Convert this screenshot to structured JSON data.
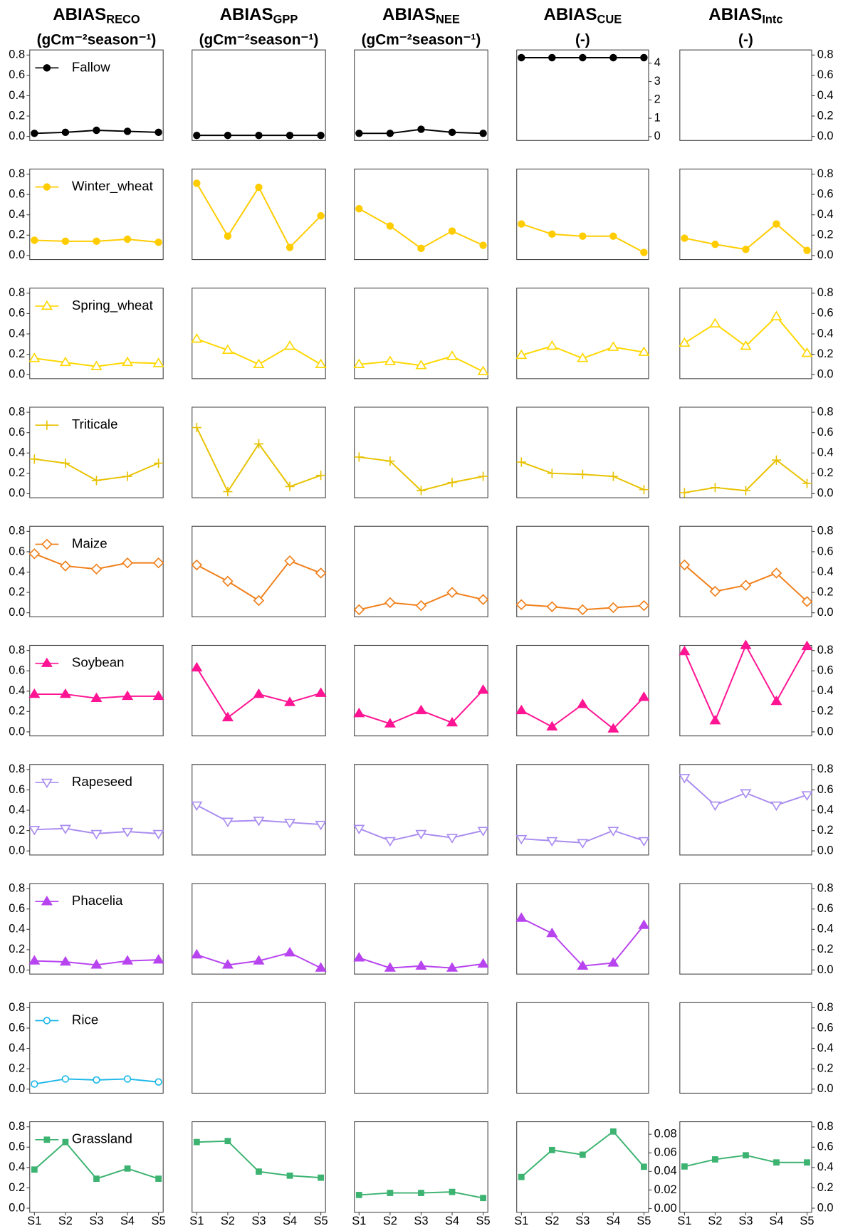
{
  "chart_data": {
    "type": "line",
    "categories": [
      "S1",
      "S2",
      "S3",
      "S4",
      "S5"
    ],
    "ylim": [
      -0.04,
      0.85
    ],
    "yticks": [
      {
        "value": 0,
        "label": "0.0"
      },
      0.2,
      0.4,
      0.6,
      0.8
    ],
    "series": [
      {
        "name": "Fallow",
        "color": "#000000",
        "marker": "circle"
      },
      {
        "name": "Winter_wheat",
        "color": "#FFCC00",
        "marker": "circle"
      },
      {
        "name": "Spring_wheat",
        "color": "#FFD700",
        "marker": "triangle-open"
      },
      {
        "name": "Triticale",
        "color": "#E8C200",
        "marker": "plus"
      },
      {
        "name": "Maize",
        "color": "#F07F1A",
        "marker": "diamond-open"
      },
      {
        "name": "Soybean",
        "color": "#FF1493",
        "marker": "triangle"
      },
      {
        "name": "Rapeseed",
        "color": "#A98CF0",
        "marker": "triangle-down-open"
      },
      {
        "name": "Phacelia",
        "color": "#B844F0",
        "marker": "triangle"
      },
      {
        "name": "Rice",
        "color": "#1CB8E8",
        "marker": "circle-open"
      },
      {
        "name": "Grassland",
        "color": "#3CB371",
        "marker": "square"
      }
    ],
    "columns": [
      {
        "title": "ABIAS",
        "subscript": "RECO",
        "unit": "(gCm⁻²season⁻¹)",
        "values": [
          [
            0.03,
            0.04,
            0.06,
            0.05,
            0.04
          ],
          [
            0.15,
            0.14,
            0.14,
            0.16,
            0.13
          ],
          [
            0.16,
            0.12,
            0.08,
            0.12,
            0.11
          ],
          [
            0.34,
            0.3,
            0.13,
            0.17,
            0.3
          ],
          [
            0.58,
            0.46,
            0.43,
            0.49,
            0.49
          ],
          [
            0.37,
            0.37,
            0.33,
            0.35,
            0.35
          ],
          [
            0.21,
            0.22,
            0.17,
            0.19,
            0.17
          ],
          [
            0.09,
            0.08,
            0.05,
            0.09,
            0.1
          ],
          [
            0.05,
            0.1,
            0.09,
            0.1,
            0.07
          ],
          [
            0.38,
            0.65,
            0.29,
            0.39,
            0.29
          ]
        ]
      },
      {
        "title": "ABIAS",
        "subscript": "GPP",
        "unit": "(gCm⁻²season⁻¹)",
        "values": [
          [
            0.01,
            0.01,
            0.01,
            0.01,
            0.01
          ],
          [
            0.71,
            0.19,
            0.67,
            0.08,
            0.39
          ],
          [
            0.35,
            0.24,
            0.1,
            0.28,
            0.1
          ],
          [
            0.65,
            0.02,
            0.49,
            0.07,
            0.18
          ],
          [
            0.47,
            0.31,
            0.12,
            0.51,
            0.39
          ],
          [
            0.63,
            0.14,
            0.37,
            0.29,
            0.38
          ],
          [
            0.45,
            0.29,
            0.3,
            0.28,
            0.26
          ],
          [
            0.15,
            0.05,
            0.09,
            0.17,
            0.02
          ],
          null,
          [
            0.65,
            0.66,
            0.36,
            0.32,
            0.3
          ]
        ]
      },
      {
        "title": "ABIAS",
        "subscript": "NEE",
        "unit": "(gCm⁻²season⁻¹)",
        "values": [
          [
            0.03,
            0.03,
            0.07,
            0.04,
            0.03
          ],
          [
            0.46,
            0.29,
            0.07,
            0.24,
            0.1
          ],
          [
            0.1,
            0.13,
            0.09,
            0.18,
            0.03
          ],
          [
            0.36,
            0.32,
            0.03,
            0.11,
            0.17
          ],
          [
            0.03,
            0.1,
            0.07,
            0.2,
            0.13
          ],
          [
            0.18,
            0.08,
            0.21,
            0.09,
            0.41
          ],
          [
            0.22,
            0.1,
            0.17,
            0.13,
            0.2
          ],
          [
            0.12,
            0.02,
            0.04,
            0.02,
            0.06
          ],
          null,
          [
            0.13,
            0.15,
            0.15,
            0.16,
            0.1
          ]
        ]
      },
      {
        "title": "ABIAS",
        "subscript": "CUE",
        "unit": "(-)",
        "values": [
          [
            4.3,
            4.3,
            4.3,
            4.3,
            4.3
          ],
          [
            0.31,
            0.21,
            0.19,
            0.19,
            0.03
          ],
          [
            0.19,
            0.28,
            0.16,
            0.27,
            0.22
          ],
          [
            0.31,
            0.2,
            0.19,
            0.17,
            0.04
          ],
          [
            0.08,
            0.06,
            0.03,
            0.05,
            0.07
          ],
          [
            0.21,
            0.05,
            0.27,
            0.03,
            0.34
          ],
          [
            0.12,
            0.1,
            0.08,
            0.2,
            0.1
          ],
          [
            0.51,
            0.36,
            0.04,
            0.07,
            0.44
          ],
          null,
          [
            0.034,
            0.063,
            0.058,
            0.083,
            0.045
          ]
        ],
        "y2": [
          {
            "ylim": [
              -0.21,
              4.72
            ],
            "yticks": [
              0,
              1,
              2,
              3,
              4
            ]
          },
          null,
          null,
          null,
          null,
          null,
          null,
          null,
          null,
          {
            "ylim": [
              -0.004,
              0.0935
            ],
            "yticks": [
              {
                "value": 0,
                "label": "0.00"
              },
              0.02,
              0.04,
              0.06,
              0.08
            ]
          }
        ]
      },
      {
        "title": "ABIAS",
        "subscript": "Intc",
        "unit": "(-)",
        "values": [
          null,
          [
            0.17,
            0.11,
            0.06,
            0.31,
            0.05
          ],
          [
            0.31,
            0.5,
            0.28,
            0.57,
            0.21
          ],
          [
            0.01,
            0.06,
            0.03,
            0.33,
            0.1
          ],
          [
            0.47,
            0.21,
            0.27,
            0.39,
            0.11
          ],
          [
            0.79,
            0.11,
            0.85,
            0.3,
            0.84
          ],
          [
            0.72,
            0.45,
            0.57,
            0.45,
            0.55
          ],
          null,
          null,
          [
            0.41,
            0.48,
            0.52,
            0.45,
            0.45
          ]
        ]
      }
    ]
  }
}
